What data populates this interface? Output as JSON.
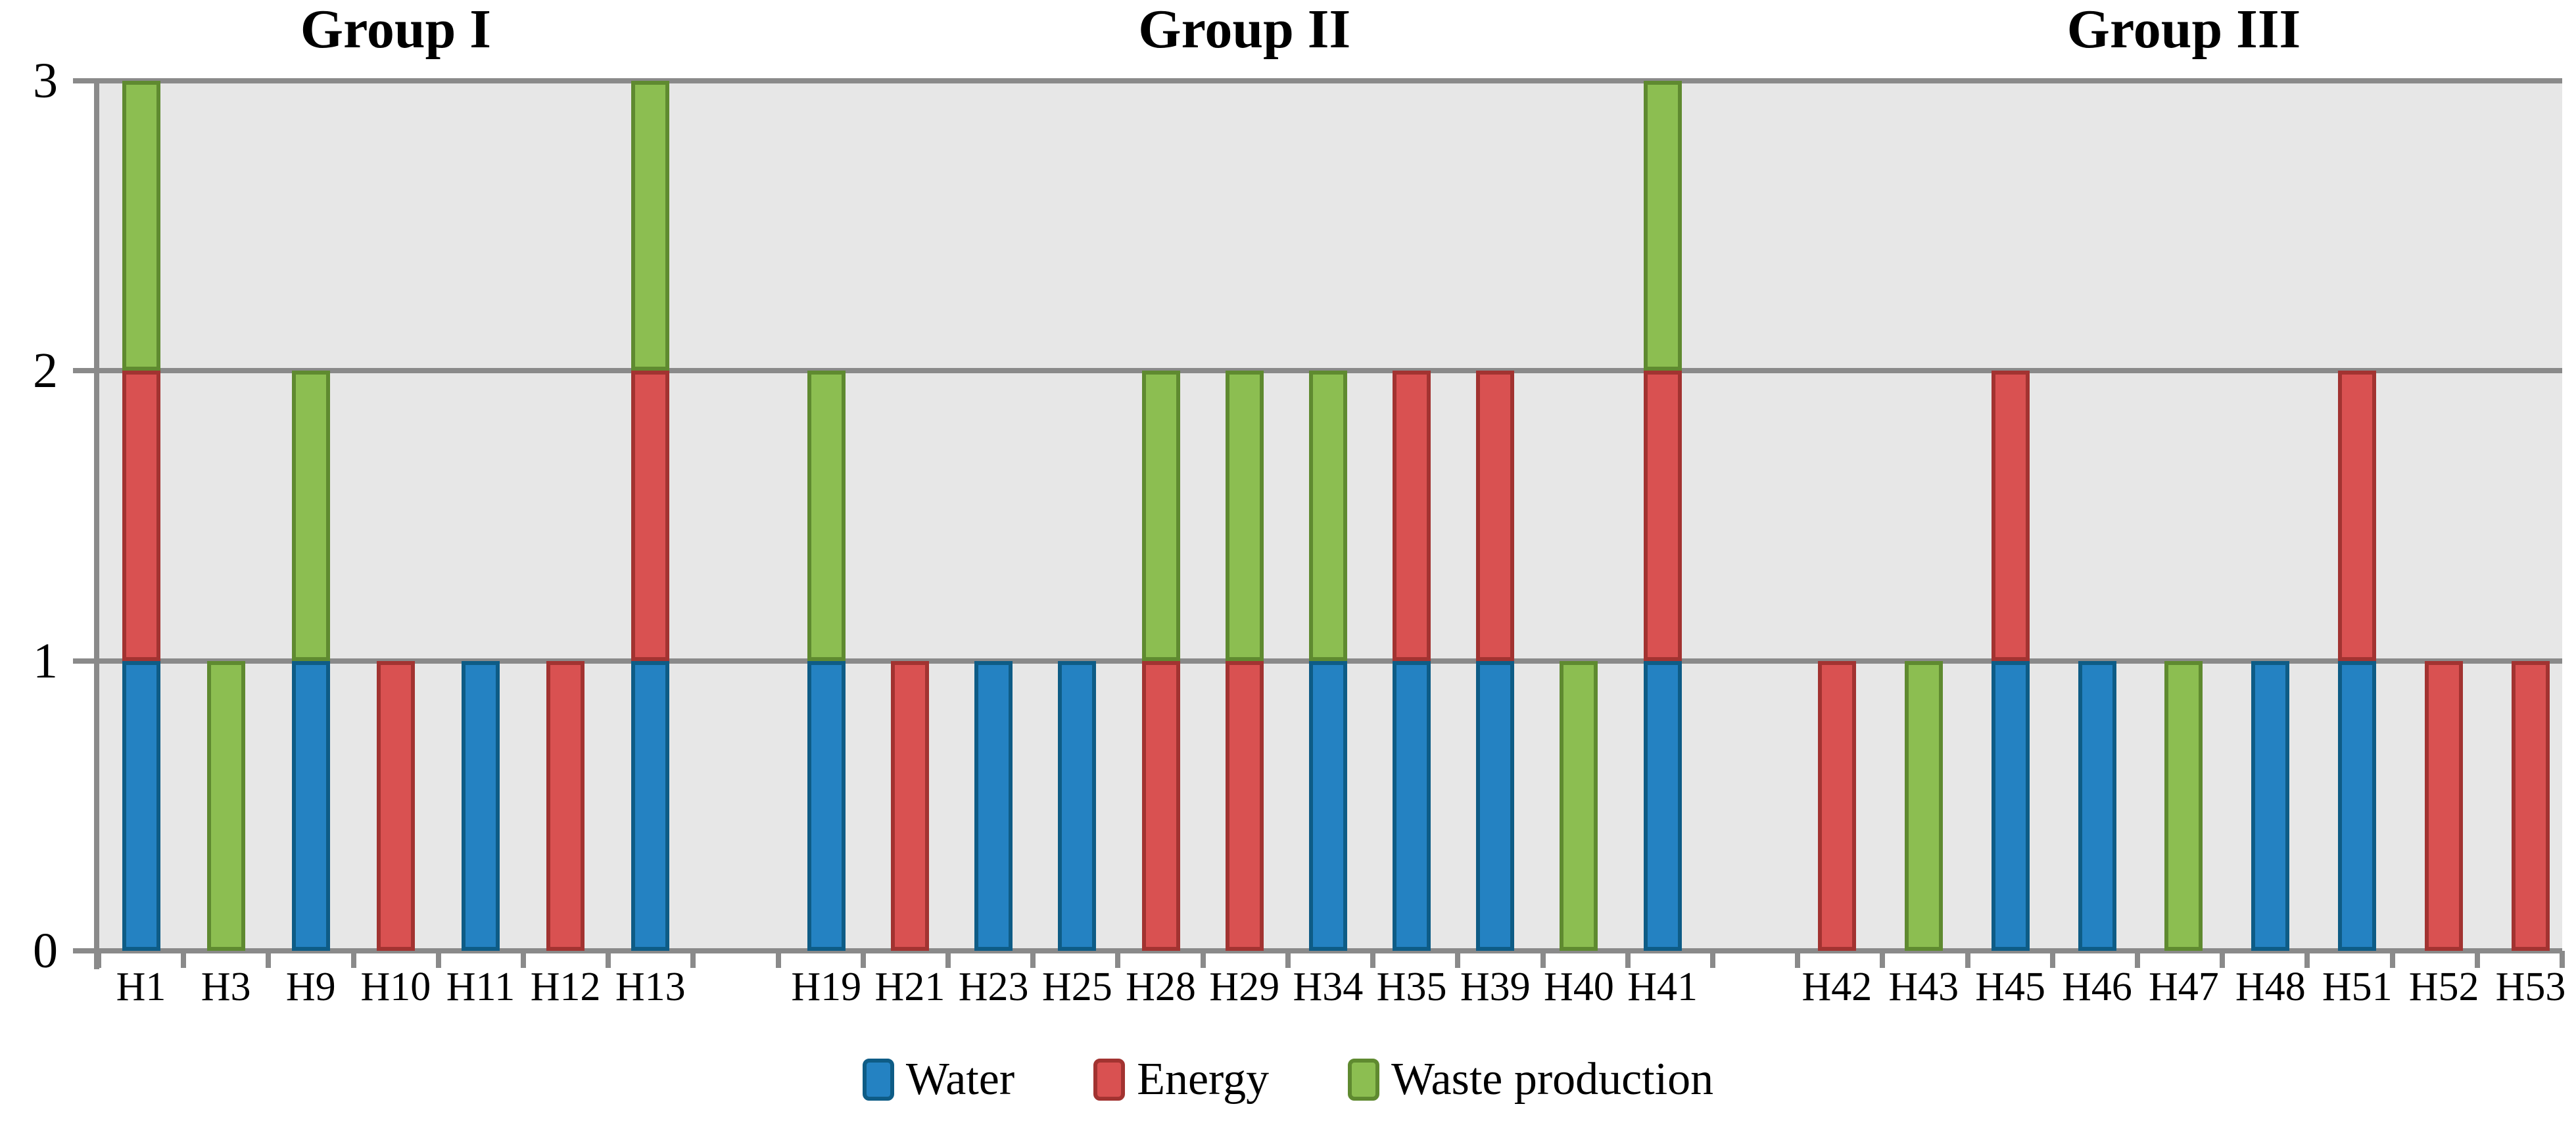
{
  "chart_data": {
    "type": "bar",
    "stacked": true,
    "title": "",
    "xlabel": "",
    "ylabel": "",
    "y_axis": {
      "min": 0,
      "max": 3,
      "ticks": [
        3,
        2,
        1,
        0
      ],
      "gridlines": true
    },
    "legend_position": "bottom-center",
    "series_order": [
      "water",
      "energy",
      "waste"
    ],
    "series_meta": {
      "water": {
        "label": "Water",
        "fill": "#2482C2",
        "border": "#0E5C86"
      },
      "energy": {
        "label": "Energy",
        "fill": "#D95151",
        "border": "#A23331"
      },
      "waste": {
        "label": "Waste production",
        "fill": "#8CBE51",
        "border": "#5F8A30"
      }
    },
    "colors": {
      "plot_background": "#E7E7E7",
      "grid": "#8A8A8A",
      "page_background": "#FFFFFF",
      "text": "#000000"
    },
    "groups": [
      {
        "title": "Group I",
        "bars": [
          {
            "label": "H1",
            "water": 1,
            "energy": 1,
            "waste": 1
          },
          {
            "label": "H3",
            "water": 0,
            "energy": 0,
            "waste": 1
          },
          {
            "label": "H9",
            "water": 1,
            "energy": 0,
            "waste": 1
          },
          {
            "label": "H10",
            "water": 0,
            "energy": 1,
            "waste": 0
          },
          {
            "label": "H11",
            "water": 1,
            "energy": 0,
            "waste": 0
          },
          {
            "label": "H12",
            "water": 0,
            "energy": 1,
            "waste": 0
          },
          {
            "label": "H13",
            "water": 1,
            "energy": 1,
            "waste": 1
          }
        ]
      },
      {
        "title": "Group II",
        "bars": [
          {
            "label": "H19",
            "water": 1,
            "energy": 0,
            "waste": 1
          },
          {
            "label": "H21",
            "water": 0,
            "energy": 1,
            "waste": 0
          },
          {
            "label": "H23",
            "water": 1,
            "energy": 0,
            "waste": 0
          },
          {
            "label": "H25",
            "water": 1,
            "energy": 0,
            "waste": 0
          },
          {
            "label": "H28",
            "water": 0,
            "energy": 1,
            "waste": 1
          },
          {
            "label": "H29",
            "water": 0,
            "energy": 1,
            "waste": 1
          },
          {
            "label": "H34",
            "water": 1,
            "energy": 0,
            "waste": 1
          },
          {
            "label": "H35",
            "water": 1,
            "energy": 1,
            "waste": 0
          },
          {
            "label": "H39",
            "water": 1,
            "energy": 1,
            "waste": 0
          },
          {
            "label": "H40",
            "water": 0,
            "energy": 0,
            "waste": 1
          },
          {
            "label": "H41",
            "water": 1,
            "energy": 1,
            "waste": 1
          }
        ]
      },
      {
        "title": "Group III",
        "bars": [
          {
            "label": "H42",
            "water": 0,
            "energy": 1,
            "waste": 0
          },
          {
            "label": "H43",
            "water": 0,
            "energy": 0,
            "waste": 1
          },
          {
            "label": "H45",
            "water": 1,
            "energy": 1,
            "waste": 0
          },
          {
            "label": "H46",
            "water": 1,
            "energy": 0,
            "waste": 0
          },
          {
            "label": "H47",
            "water": 0,
            "energy": 0,
            "waste": 1
          },
          {
            "label": "H48",
            "water": 1,
            "energy": 0,
            "waste": 0
          },
          {
            "label": "H51",
            "water": 1,
            "energy": 1,
            "waste": 0
          },
          {
            "label": "H52",
            "water": 0,
            "energy": 1,
            "waste": 0
          },
          {
            "label": "H53",
            "water": 0,
            "energy": 1,
            "waste": 0
          }
        ]
      }
    ]
  }
}
